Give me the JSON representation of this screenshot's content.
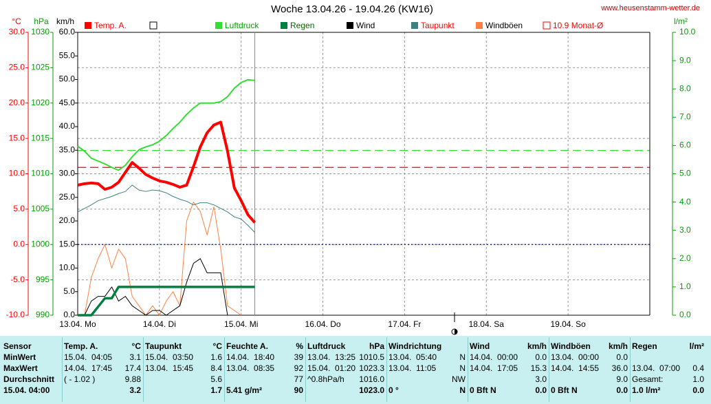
{
  "site": "www.heusenstamm-wetter.de",
  "chart_data": {
    "type": "line",
    "title": "Woche 13.04.26 - 19.04.26 (KW16)",
    "y_unit": "°C",
    "y3_unit": "hPa",
    "y4_unit": "km/h",
    "y2_unit": "l/m²",
    "xlim": [
      0,
      168
    ],
    "xticks": [
      {
        "value": 0,
        "label": "13.04. Mo"
      },
      {
        "value": 24,
        "label": "14.04. Di"
      },
      {
        "value": 48,
        "label": "15.04. Mi"
      },
      {
        "value": 72,
        "label": "16.04. Do"
      },
      {
        "value": 96,
        "label": "17.04. Fr"
      },
      {
        "value": 120,
        "label": "18.04. Sa"
      },
      {
        "value": 144,
        "label": "19.04. So"
      }
    ],
    "ylim": [
      -10,
      30
    ],
    "yticks": [
      {
        "value": 30,
        "label": "30.0"
      },
      {
        "value": 25,
        "label": "25.0"
      },
      {
        "value": 20,
        "label": "20.0"
      },
      {
        "value": 15,
        "label": "15.0"
      },
      {
        "value": 10,
        "label": "10.0"
      },
      {
        "value": 5,
        "label": "5.0"
      },
      {
        "value": 0,
        "label": "0.0"
      },
      {
        "value": -5,
        "label": "-5.0"
      },
      {
        "value": -10,
        "label": "-10.0"
      }
    ],
    "y3lim": [
      990,
      1030
    ],
    "y3ticks": [
      1030,
      1025,
      1020,
      1015,
      1010,
      1005,
      1000,
      995,
      990
    ],
    "y4lim": [
      0,
      60
    ],
    "y4ticks": [
      {
        "value": 60,
        "label": "60.0"
      },
      {
        "value": 55,
        "label": "55.0"
      },
      {
        "value": 50,
        "label": "50.0"
      },
      {
        "value": 45,
        "label": "45.0"
      },
      {
        "value": 40,
        "label": "40.0"
      },
      {
        "value": 35,
        "label": "35.0"
      },
      {
        "value": 30,
        "label": "30.0"
      },
      {
        "value": 25,
        "label": "25.0"
      },
      {
        "value": 20,
        "label": "20.0"
      },
      {
        "value": 15,
        "label": "15.0"
      },
      {
        "value": 10,
        "label": "10.0"
      },
      {
        "value": 5,
        "label": "5.0"
      },
      {
        "value": 0,
        "label": "0.0"
      }
    ],
    "y2lim": [
      0,
      10
    ],
    "y2ticks": [
      {
        "value": 10,
        "label": "10.0"
      },
      {
        "value": 9,
        "label": "9.0"
      },
      {
        "value": 8,
        "label": "8.0"
      },
      {
        "value": 7,
        "label": "7.0"
      },
      {
        "value": 6,
        "label": "6.0"
      },
      {
        "value": 5,
        "label": "5.0"
      },
      {
        "value": 4,
        "label": "4.0"
      },
      {
        "value": 3,
        "label": "3.0"
      },
      {
        "value": 2,
        "label": "2.0"
      },
      {
        "value": 1,
        "label": "1.0"
      },
      {
        "value": 0,
        "label": "0.0"
      }
    ],
    "grid": true,
    "x": [
      0,
      2,
      4,
      6,
      8,
      10,
      12,
      14,
      16,
      18,
      20,
      22,
      24,
      26,
      28,
      30,
      32,
      34,
      36,
      38,
      40,
      42,
      44,
      46,
      48,
      50,
      52
    ],
    "series": [
      {
        "name": "Temp. A.",
        "color": "#ff0000",
        "label_color": "#ff0000",
        "width": 4,
        "axis": "y",
        "values": [
          8.4,
          8.6,
          8.7,
          8.6,
          7.8,
          8.1,
          8.8,
          10.2,
          11.6,
          10.8,
          9.9,
          9.4,
          9.0,
          8.8,
          8.5,
          8.1,
          8.4,
          11.0,
          13.8,
          15.8,
          16.9,
          17.3,
          13.2,
          8.0,
          6.2,
          4.2,
          3.1
        ]
      },
      {
        "name": "Luftdruck",
        "color": "#33dd33",
        "label_color": "#00a000",
        "width": 2,
        "axis": "y3",
        "values": [
          1013.9,
          1013.2,
          1012.2,
          1011.8,
          1011.4,
          1010.9,
          1010.5,
          1011.2,
          1012.4,
          1013.4,
          1013.8,
          1014.1,
          1014.6,
          1015.4,
          1016.4,
          1017.3,
          1018.4,
          1019.3,
          1020.0,
          1020.0,
          1020.0,
          1020.2,
          1020.9,
          1022.1,
          1022.9,
          1023.3,
          1023.2
        ]
      },
      {
        "name": "Regen",
        "color": "#008040",
        "label_color": "#006600",
        "width": 3.5,
        "axis": "y2",
        "values": [
          0,
          0,
          0,
          0.3,
          0.6,
          0.6,
          1.0,
          1.0,
          1.0,
          1.0,
          1.0,
          1.0,
          1.0,
          1.0,
          1.0,
          1.0,
          1.0,
          1.0,
          1.0,
          1.0,
          1.0,
          1.0,
          1.0,
          1.0,
          1.0,
          1.0,
          1.0
        ]
      },
      {
        "name": "Wind",
        "color": "#000000",
        "label_color": "#000000",
        "width": 1,
        "axis": "y4",
        "values": [
          0,
          0,
          3,
          4,
          4,
          6,
          3,
          4,
          2,
          1,
          0,
          1,
          1,
          0,
          1,
          2,
          7,
          11,
          12,
          9,
          9,
          9,
          0,
          null,
          null,
          null,
          null
        ]
      },
      {
        "name": "Taupunkt",
        "color": "#3f7f7f",
        "label_color": "#ff0000",
        "width": 1,
        "axis": "y",
        "values": [
          4.6,
          5.1,
          5.6,
          6.2,
          6.5,
          6.8,
          7.2,
          7.5,
          8.4,
          7.7,
          7.5,
          7.7,
          7.6,
          7.3,
          6.8,
          6.4,
          6.1,
          5.6,
          5.9,
          5.9,
          5.6,
          5.1,
          4.6,
          3.9,
          3.6,
          2.7,
          1.7
        ]
      },
      {
        "name": "Windböen",
        "color": "#ff8040",
        "label_color": "#000000",
        "width": 1,
        "axis": "y4",
        "values": [
          0,
          0,
          8,
          12,
          15,
          10,
          14,
          12,
          4,
          2,
          0,
          2,
          0,
          3,
          5,
          2,
          20,
          24,
          22,
          17,
          23,
          14,
          2,
          1,
          0,
          null,
          null
        ]
      }
    ],
    "references": [
      {
        "name": "10.9 Monat-Ø",
        "value": 10.9,
        "axis": "y",
        "color": "#ff0000",
        "style": "dashed"
      },
      {
        "value": 1013.3,
        "axis": "y3",
        "color": "#33dd33",
        "style": "dashed"
      },
      {
        "value": 0,
        "axis": "y",
        "color": "#0000cc",
        "style": "dotted"
      }
    ]
  },
  "table": {
    "header": [
      [
        "Sensor"
      ],
      [
        "Temp. A.",
        "°C"
      ],
      [
        "Taupunkt",
        "°C"
      ],
      [
        "Feuchte A.",
        "%"
      ],
      [
        "Luftdruck",
        "hPa"
      ],
      [
        "Windrichtung"
      ],
      [
        "Wind",
        "km/h"
      ],
      [
        "Windböen",
        "km/h"
      ],
      [
        "Regen",
        "l/m²"
      ]
    ],
    "rows": [
      [
        [
          "MinWert"
        ],
        [
          "15.04.  04:05",
          "3.1"
        ],
        [
          "15.04.  03:50",
          "1.6"
        ],
        [
          "14.04.  18:40",
          "39"
        ],
        [
          "13.04.  13:25",
          "1010.5"
        ],
        [
          "13.04.  05:40",
          "N"
        ],
        [
          "14.04.  00:00",
          "0.0"
        ],
        [
          "13.04.  00:00",
          "0.0"
        ],
        []
      ],
      [
        [
          "MaxWert"
        ],
        [
          "14.04.  17:45",
          "17.4"
        ],
        [
          "13.04.  15:45",
          "8.4"
        ],
        [
          "13.04.  08:35",
          "92"
        ],
        [
          "15.04.  01:20",
          "1023.3"
        ],
        [
          "13.04.  11:05",
          "N"
        ],
        [
          "14.04.  17:05",
          "15.3"
        ],
        [
          "14.04.  14:55",
          "36.0"
        ],
        [
          "13.04.  07:00",
          "0.4"
        ]
      ],
      [
        [
          "Durchschnitt"
        ],
        [
          "( - 1.02 )",
          "9.88"
        ],
        [
          "5.6"
        ],
        [
          "77"
        ],
        [
          "^0.8hPa/h",
          "1016.0"
        ],
        [
          "NW"
        ],
        [
          "3.0"
        ],
        [
          "9.0"
        ],
        [
          "Gesamt:",
          "1.0"
        ]
      ],
      [
        [
          "15.04. 04:00"
        ],
        [
          "3.2"
        ],
        [
          "1.7"
        ],
        [
          "5.41 g/m²",
          "90"
        ],
        [
          "1023.0"
        ],
        [
          "0 °",
          "N"
        ],
        [
          "0 Bft N",
          "0.0"
        ],
        [
          "0 Bft N",
          "0.0"
        ],
        [
          "1.0 l/m²",
          "0.0"
        ]
      ]
    ]
  }
}
